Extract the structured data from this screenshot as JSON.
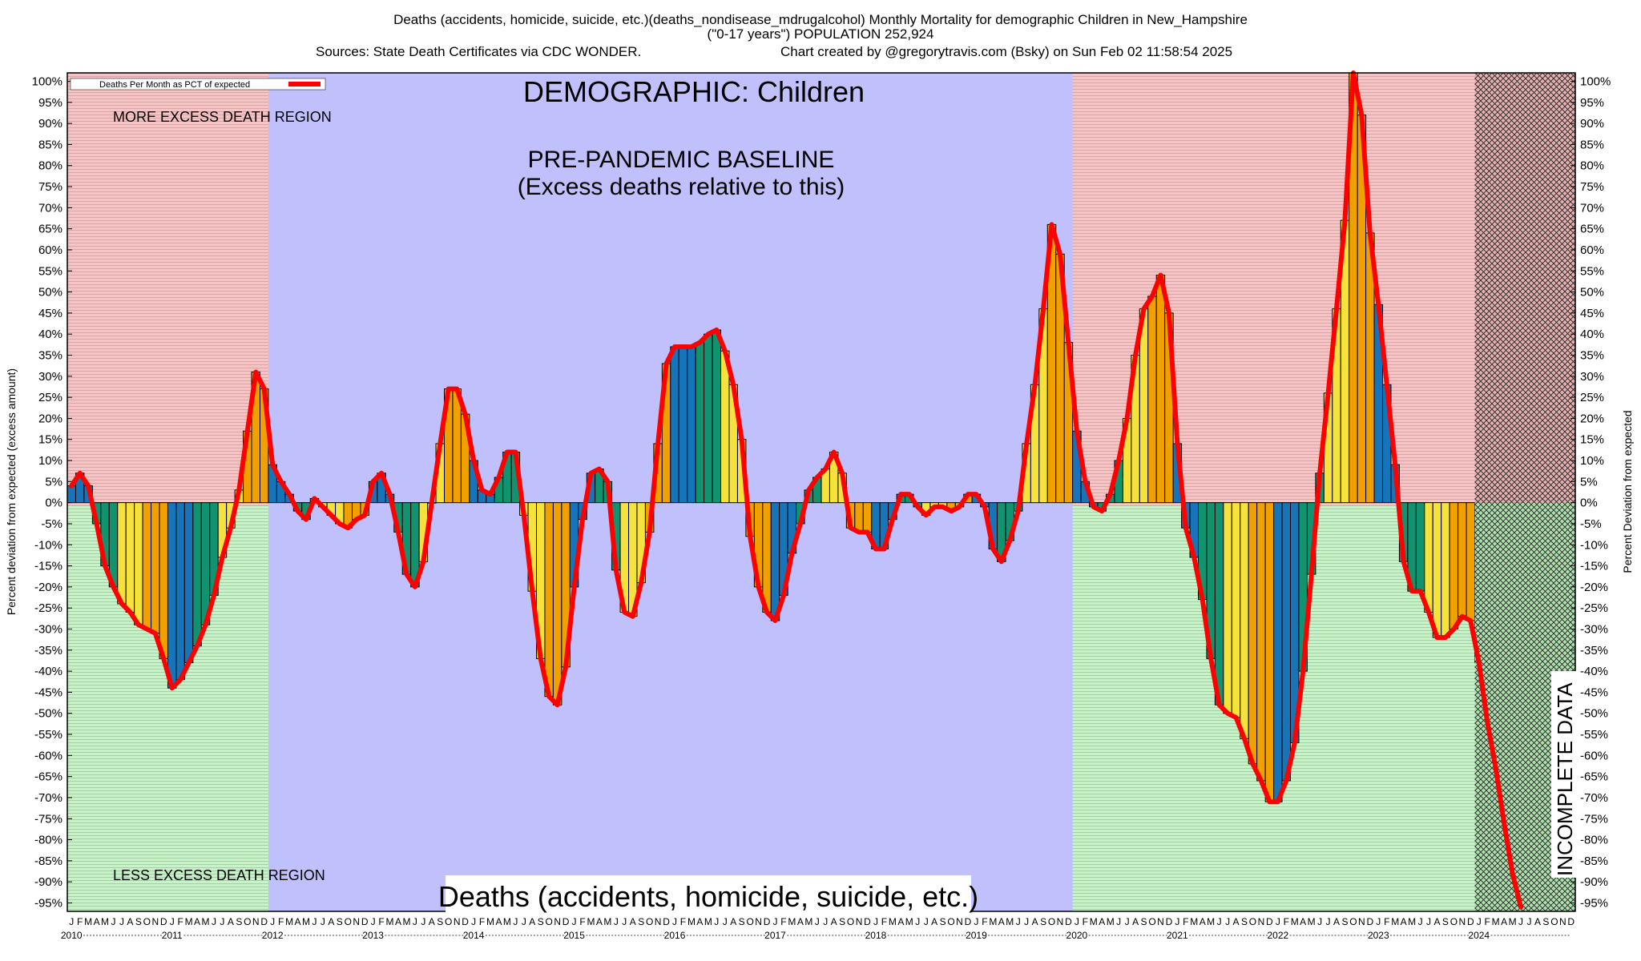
{
  "header": {
    "line1": "Deaths (accidents, homicide, suicide, etc.)(deaths_nondisease_mdrugalcohol) Monthly Mortality for demographic Children in New_Hampshire",
    "line2": "(\"0-17 years\") POPULATION 252,924",
    "line3_left": "Sources: State Death Certificates via CDC WONDER.",
    "line3_right": "Chart created by @gregorytravis.com (Bsky) on Sun Feb 02 11:58:54 2025"
  },
  "colors": {
    "excess_region": "#f6c4c4",
    "less_region": "#c8f2c8",
    "baseline_region": "#c0c0fc",
    "line": "#ff0000",
    "bar_cycle": [
      "#1874b8",
      "#129370",
      "#f5e23c",
      "#f0a000"
    ]
  },
  "chart_data": {
    "type": "bar",
    "title": "DEMOGRAPHIC: Children",
    "subtitle": "Deaths (accidents, homicide, suicide, etc.)",
    "ylabel_left": "Percent deviation from expected (excess amount)",
    "ylabel_right": "Percent Deviation from expected",
    "legend": {
      "label": "Deaths Per Month as PCT of expected",
      "position": "top-left"
    },
    "ylim": [
      -97,
      102
    ],
    "yticks": [
      "100%",
      "95%",
      "90%",
      "85%",
      "80%",
      "75%",
      "70%",
      "65%",
      "60%",
      "55%",
      "50%",
      "45%",
      "40%",
      "35%",
      "30%",
      "25%",
      "20%",
      "15%",
      "10%",
      "5%",
      "0%",
      "-5%",
      "-10%",
      "-15%",
      "-20%",
      "-25%",
      "-30%",
      "-35%",
      "-40%",
      "-45%",
      "-50%",
      "-55%",
      "-60%",
      "-65%",
      "-70%",
      "-75%",
      "-80%",
      "-85%",
      "-90%",
      "-95%"
    ],
    "month_letters": [
      "J",
      "F",
      "M",
      "A",
      "M",
      "J",
      "J",
      "A",
      "S",
      "O",
      "N",
      "D"
    ],
    "years": [
      "2010",
      "2011",
      "2012",
      "2013",
      "2014",
      "2015",
      "2016",
      "2017",
      "2018",
      "2019",
      "2020",
      "2021",
      "2022",
      "2023",
      "2024"
    ],
    "regions": [
      {
        "label": "MORE EXCESS DEATH REGION"
      },
      {
        "label": "LESS EXCESS DEATH REGION"
      },
      {
        "label": "PRE-PANDEMIC BASELINE",
        "label2": "(Excess deaths relative to this)",
        "from": "2012-01",
        "to": "2019-12"
      },
      {
        "label": "INCOMPLETE DATA",
        "from": "2024-01",
        "to": "2024-11"
      }
    ],
    "start": "2010-01",
    "values": [
      4,
      7,
      4,
      -5,
      -15,
      -20,
      -24,
      -26,
      -29,
      -30,
      -31,
      -37,
      -44,
      -42,
      -38,
      -34,
      -29,
      -22,
      -13,
      -6,
      3,
      17,
      31,
      27,
      9,
      5,
      2,
      -2,
      -4,
      1,
      -1,
      -3,
      -5,
      -6,
      -4,
      -3,
      5,
      7,
      2,
      -7,
      -17,
      -20,
      -14,
      0,
      14,
      27,
      27,
      21,
      10,
      3,
      2,
      6,
      12,
      12,
      -3,
      -21,
      -37,
      -46,
      -48,
      -39,
      -20,
      -4,
      7,
      8,
      5,
      -16,
      -26,
      -27,
      -19,
      -7,
      14,
      33,
      37,
      37,
      37,
      38,
      40,
      41,
      36,
      28,
      15,
      -8,
      -20,
      -26,
      -28,
      -22,
      -12,
      -5,
      3,
      6,
      8,
      12,
      7,
      -6,
      -7,
      -7,
      -11,
      -11,
      -4,
      2,
      2,
      -1,
      -3,
      -1,
      -1,
      -2,
      -1,
      2,
      2,
      -1,
      -11,
      -14,
      -9,
      -2,
      14,
      28,
      46,
      66,
      59,
      38,
      17,
      5,
      -1,
      -2,
      2,
      10,
      20,
      35,
      46,
      49,
      54,
      45,
      14,
      -6,
      -13,
      -23,
      -37,
      -48,
      -50,
      -51,
      -56,
      -62,
      -66,
      -71,
      -71,
      -66,
      -57,
      -40,
      -17,
      7,
      26,
      46,
      67,
      102,
      92,
      64,
      47,
      28,
      9,
      -14,
      -21,
      -21,
      -26,
      -32,
      -32,
      -30,
      -27,
      -28,
      -38,
      -52,
      -63,
      -76,
      -88,
      -96
    ]
  }
}
